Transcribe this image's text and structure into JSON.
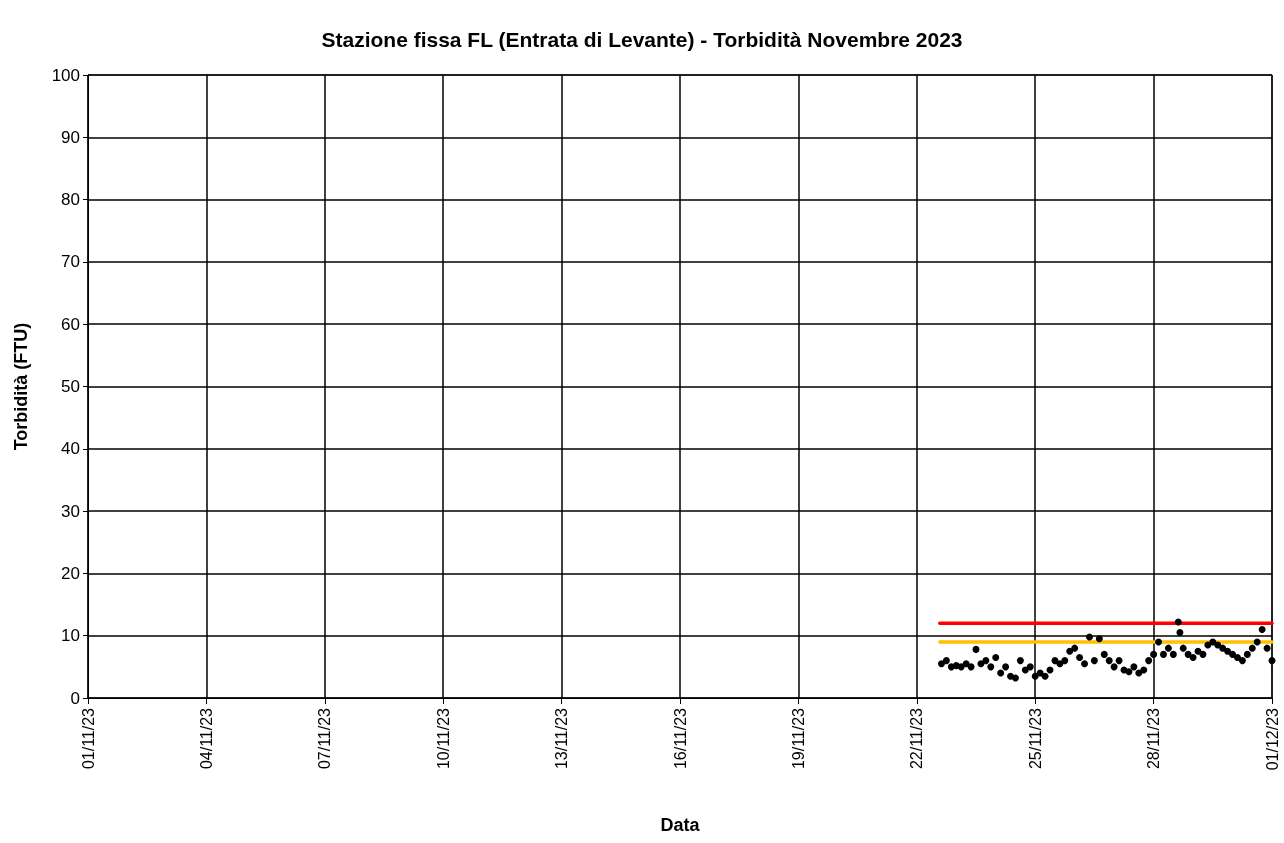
{
  "chart_data": {
    "type": "scatter",
    "title": "Stazione fissa FL (Entrata di Levante) - Torbidità Novembre 2023",
    "xlabel": "Data",
    "ylabel": "Torbidità (FTU)",
    "x": [
      "2023-11-22T15:00",
      "2023-11-22T18:00",
      "2023-11-22T21:00",
      "2023-11-23T00:00",
      "2023-11-23T03:00",
      "2023-11-23T06:00",
      "2023-11-23T09:00",
      "2023-11-23T12:00",
      "2023-11-23T15:00",
      "2023-11-23T18:00",
      "2023-11-23T21:00",
      "2023-11-24T00:00",
      "2023-11-24T03:00",
      "2023-11-24T06:00",
      "2023-11-24T09:00",
      "2023-11-24T12:00",
      "2023-11-24T15:00",
      "2023-11-24T18:00",
      "2023-11-24T21:00",
      "2023-11-25T00:00",
      "2023-11-25T03:00",
      "2023-11-25T06:00",
      "2023-11-25T09:00",
      "2023-11-25T12:00",
      "2023-11-25T15:00",
      "2023-11-25T18:00",
      "2023-11-25T21:00",
      "2023-11-26T00:00",
      "2023-11-26T03:00",
      "2023-11-26T06:00",
      "2023-11-26T09:00",
      "2023-11-26T12:00",
      "2023-11-26T15:00",
      "2023-11-26T18:00",
      "2023-11-26T21:00",
      "2023-11-27T00:00",
      "2023-11-27T03:00",
      "2023-11-27T06:00",
      "2023-11-27T09:00",
      "2023-11-27T12:00",
      "2023-11-27T15:00",
      "2023-11-27T18:00",
      "2023-11-27T21:00",
      "2023-11-28T00:00",
      "2023-11-28T03:00",
      "2023-11-28T06:00",
      "2023-11-28T09:00",
      "2023-11-28T12:00",
      "2023-11-28T15:00",
      "2023-11-28T16:00",
      "2023-11-28T18:00",
      "2023-11-28T21:00",
      "2023-11-29T00:00",
      "2023-11-29T03:00",
      "2023-11-29T06:00",
      "2023-11-29T09:00",
      "2023-11-29T12:00",
      "2023-11-29T15:00",
      "2023-11-29T18:00",
      "2023-11-29T21:00",
      "2023-11-30T00:00",
      "2023-11-30T03:00",
      "2023-11-30T06:00",
      "2023-11-30T09:00",
      "2023-11-30T12:00",
      "2023-11-30T15:00",
      "2023-11-30T18:00",
      "2023-11-30T21:00",
      "2023-12-01T00:00"
    ],
    "series": [
      {
        "color": "#000000",
        "values": [
          5.5,
          6,
          5,
          5.2,
          5,
          5.5,
          5,
          7.8,
          5.5,
          6,
          5,
          6.5,
          4,
          5,
          3.5,
          3.2,
          6,
          4.5,
          5,
          3.5,
          4,
          3.5,
          4.5,
          6,
          5.5,
          6,
          7.5,
          8,
          6.5,
          5.5,
          9.8,
          6,
          9.5,
          7,
          6,
          5,
          6,
          4.5,
          4.2,
          5,
          4,
          4.5,
          6,
          7,
          9,
          7,
          8,
          7,
          12.2,
          10.5,
          8,
          7,
          6.5,
          7.5,
          7,
          8.5,
          9,
          8.5,
          8,
          7.5,
          7,
          6.5,
          6,
          7,
          8,
          9,
          11,
          8,
          6
        ]
      },
      {
        "type": "line",
        "color": "#ff0000",
        "marker": "none",
        "x": [
          "2023-11-22T14:00",
          "2023-12-01T00:00"
        ],
        "values": [
          12,
          12
        ]
      },
      {
        "type": "line",
        "color": "#ffc000",
        "marker": "none",
        "x": [
          "2023-11-22T14:00",
          "2023-12-01T00:00"
        ],
        "values": [
          9,
          9
        ]
      }
    ],
    "marker": "circle",
    "grid": true,
    "xlim": [
      "2023-11-01",
      "2023-12-01"
    ],
    "xticks": [
      {
        "value": "2023-11-01",
        "label": "01/11/23"
      },
      {
        "value": "2023-11-04",
        "label": "04/11/23"
      },
      {
        "value": "2023-11-07",
        "label": "07/11/23"
      },
      {
        "value": "2023-11-10",
        "label": "10/11/23"
      },
      {
        "value": "2023-11-13",
        "label": "13/11/23"
      },
      {
        "value": "2023-11-16",
        "label": "16/11/23"
      },
      {
        "value": "2023-11-19",
        "label": "19/11/23"
      },
      {
        "value": "2023-11-22",
        "label": "22/11/23"
      },
      {
        "value": "2023-11-25",
        "label": "25/11/23"
      },
      {
        "value": "2023-11-28",
        "label": "28/11/23"
      },
      {
        "value": "2023-12-01",
        "label": "01/12/23"
      }
    ],
    "ylim": [
      0,
      100
    ],
    "yticks": [
      0,
      10,
      20,
      30,
      40,
      50,
      60,
      70,
      80,
      90,
      100
    ]
  }
}
